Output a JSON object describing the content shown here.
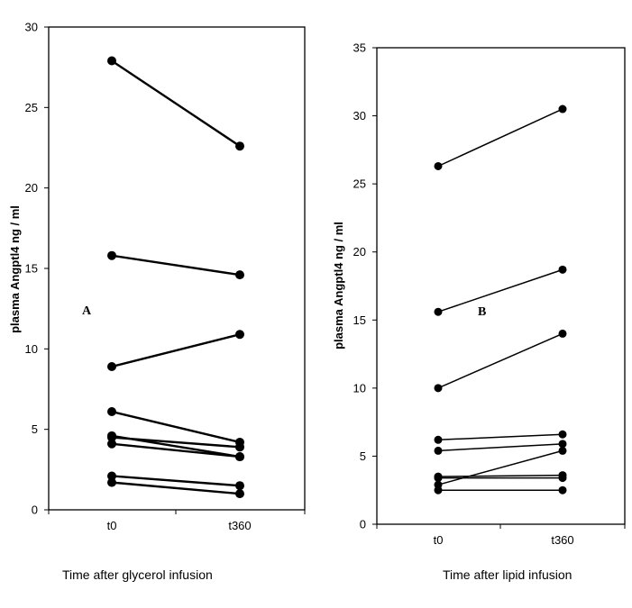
{
  "chart_data": [
    {
      "type": "line",
      "panel_label": "A",
      "ylabel": "plasma Angptl4  ng / ml",
      "xlabel": "Time after glycerol infusion",
      "categories": [
        "t0",
        "t360"
      ],
      "ylim": [
        0,
        30
      ],
      "yticks": [
        0,
        5,
        10,
        15,
        20,
        25,
        30
      ],
      "grid": false,
      "legend": "none",
      "series": [
        {
          "values": [
            27.9,
            22.6
          ]
        },
        {
          "values": [
            15.8,
            14.6
          ]
        },
        {
          "values": [
            8.9,
            10.9
          ]
        },
        {
          "values": [
            6.1,
            4.2
          ]
        },
        {
          "values": [
            4.6,
            3.3
          ]
        },
        {
          "values": [
            4.5,
            3.9
          ]
        },
        {
          "values": [
            4.1,
            3.3
          ]
        },
        {
          "values": [
            2.1,
            1.5
          ]
        },
        {
          "values": [
            1.7,
            1.0
          ]
        }
      ]
    },
    {
      "type": "line",
      "panel_label": "B",
      "ylabel": "plasma Angptl4  ng / ml",
      "xlabel": "Time after lipid infusion",
      "categories": [
        "t0",
        "t360"
      ],
      "ylim": [
        0,
        35
      ],
      "yticks": [
        0,
        5,
        10,
        15,
        20,
        25,
        30,
        35
      ],
      "grid": false,
      "legend": "none",
      "series": [
        {
          "values": [
            26.3,
            30.5
          ]
        },
        {
          "values": [
            15.6,
            18.7
          ]
        },
        {
          "values": [
            10.0,
            14.0
          ]
        },
        {
          "values": [
            6.2,
            6.6
          ]
        },
        {
          "values": [
            5.4,
            5.9
          ]
        },
        {
          "values": [
            3.5,
            3.6
          ]
        },
        {
          "values": [
            3.4,
            3.4
          ]
        },
        {
          "values": [
            2.9,
            5.4
          ]
        },
        {
          "values": [
            2.5,
            2.5
          ]
        }
      ]
    }
  ]
}
